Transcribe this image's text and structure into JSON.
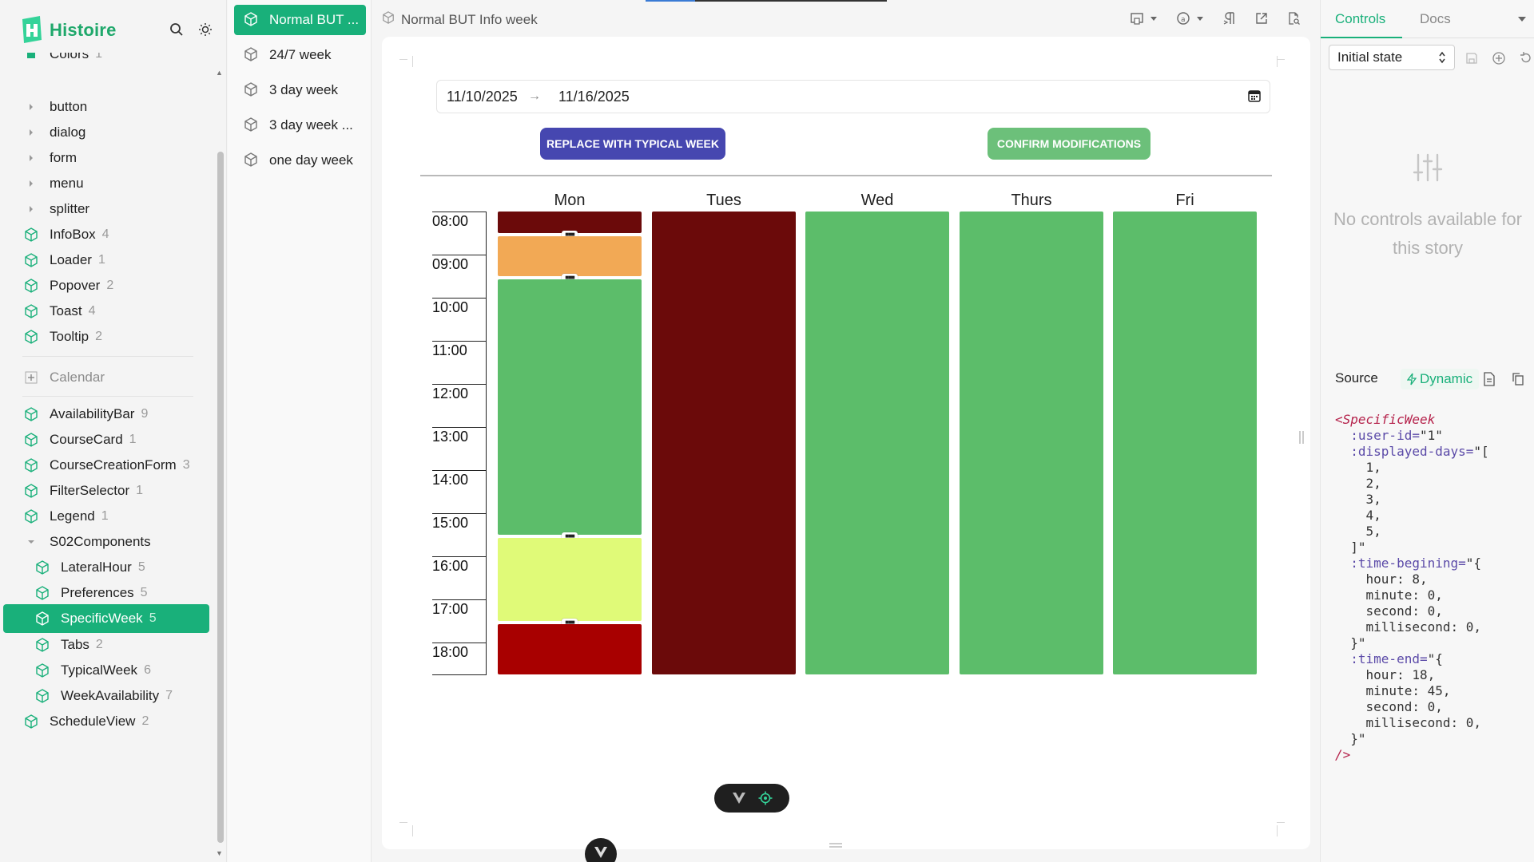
{
  "app": {
    "name": "Histoire"
  },
  "sidebar": {
    "items": [
      {
        "label": "Colors",
        "count": "1",
        "kind": "folder"
      },
      {
        "label": "button",
        "count": "",
        "kind": "folder"
      },
      {
        "label": "dialog",
        "count": "",
        "kind": "folder"
      },
      {
        "label": "form",
        "count": "",
        "kind": "folder"
      },
      {
        "label": "menu",
        "count": "",
        "kind": "folder"
      },
      {
        "label": "splitter",
        "count": "",
        "kind": "folder"
      },
      {
        "label": "InfoBox",
        "count": "4",
        "kind": "story"
      },
      {
        "label": "Loader",
        "count": "1",
        "kind": "story"
      },
      {
        "label": "Popover",
        "count": "2",
        "kind": "story"
      },
      {
        "label": "Toast",
        "count": "4",
        "kind": "story"
      },
      {
        "label": "Tooltip",
        "count": "2",
        "kind": "story"
      },
      {
        "label": "Calendar",
        "count": "",
        "kind": "group"
      },
      {
        "label": "AvailabilityBar",
        "count": "9",
        "kind": "story"
      },
      {
        "label": "CourseCard",
        "count": "1",
        "kind": "story"
      },
      {
        "label": "CourseCreationForm",
        "count": "3",
        "kind": "story"
      },
      {
        "label": "FilterSelector",
        "count": "1",
        "kind": "story"
      },
      {
        "label": "Legend",
        "count": "1",
        "kind": "story"
      },
      {
        "label": "S02Components",
        "count": "",
        "kind": "folder-open"
      },
      {
        "label": "LateralHour",
        "count": "5",
        "kind": "story-nested"
      },
      {
        "label": "Preferences",
        "count": "5",
        "kind": "story-nested"
      },
      {
        "label": "SpecificWeek",
        "count": "5",
        "kind": "story-nested-selected"
      },
      {
        "label": "Tabs",
        "count": "2",
        "kind": "story-nested"
      },
      {
        "label": "TypicalWeek",
        "count": "6",
        "kind": "story-nested"
      },
      {
        "label": "WeekAvailability",
        "count": "7",
        "kind": "story-nested"
      },
      {
        "label": "ScheduleView",
        "count": "2",
        "kind": "story"
      }
    ]
  },
  "variants": [
    {
      "label": "Normal BUT ...",
      "selected": true
    },
    {
      "label": "24/7 week",
      "selected": false
    },
    {
      "label": "3 day week",
      "selected": false
    },
    {
      "label": "3 day week ...",
      "selected": false
    },
    {
      "label": "one day week",
      "selected": false
    }
  ],
  "topbar": {
    "story_title": "Normal BUT Info week"
  },
  "preview": {
    "date_start": "11/10/2025",
    "date_arrow": "→",
    "date_end": "11/16/2025",
    "replace_label": "REPLACE WITH TYPICAL WEEK",
    "confirm_label": "CONFIRM MODIFICATIONS",
    "days": [
      "Mon",
      "Tues",
      "Wed",
      "Thurs",
      "Fri"
    ],
    "hours": [
      "08:00",
      "09:00",
      "10:00",
      "11:00",
      "12:00",
      "13:00",
      "14:00",
      "15:00",
      "16:00",
      "17:00",
      "18:00"
    ],
    "time_begin_hours": 8,
    "time_end_hours": 18.75,
    "colors": {
      "dark_red": "#6b0a0a",
      "orange": "#f2a955",
      "green": "#5cbd6a",
      "yellow": "#e0fa78",
      "red": "#a80000"
    },
    "schedule": [
      {
        "day": "Mon",
        "blocks": [
          {
            "start": 8.0,
            "end": 8.5,
            "color": "dark_red"
          },
          {
            "start": 8.5,
            "end": 9.5,
            "color": "orange"
          },
          {
            "start": 9.5,
            "end": 15.5,
            "color": "green"
          },
          {
            "start": 15.5,
            "end": 17.5,
            "color": "yellow"
          },
          {
            "start": 17.5,
            "end": 18.75,
            "color": "red"
          }
        ]
      },
      {
        "day": "Tues",
        "blocks": [
          {
            "start": 8.0,
            "end": 18.75,
            "color": "dark_red"
          }
        ]
      },
      {
        "day": "Wed",
        "blocks": [
          {
            "start": 8.0,
            "end": 18.75,
            "color": "green"
          }
        ]
      },
      {
        "day": "Thurs",
        "blocks": [
          {
            "start": 8.0,
            "end": 18.75,
            "color": "green"
          }
        ]
      },
      {
        "day": "Fri",
        "blocks": [
          {
            "start": 8.0,
            "end": 18.75,
            "color": "green"
          }
        ]
      }
    ]
  },
  "right_panel": {
    "tab_controls": "Controls",
    "tab_docs": "Docs",
    "initial_state": "Initial state",
    "no_controls": "No controls available for this story",
    "source_label": "Source",
    "dynamic_label": "Dynamic",
    "code_lines": [
      "<SpecificWeek",
      "  :user-id=\"1\"",
      "  :displayed-days=\"[",
      "    1,",
      "    2,",
      "    3,",
      "    4,",
      "    5,",
      "  ]\"",
      "  :time-begining=\"{",
      "    hour: 8,",
      "    minute: 0,",
      "    second: 0,",
      "    millisecond: 0,",
      "  }\"",
      "  :time-end=\"{",
      "    hour: 18,",
      "    minute: 45,",
      "    second: 0,",
      "    millisecond: 0,",
      "  }\"",
      "/>"
    ]
  }
}
